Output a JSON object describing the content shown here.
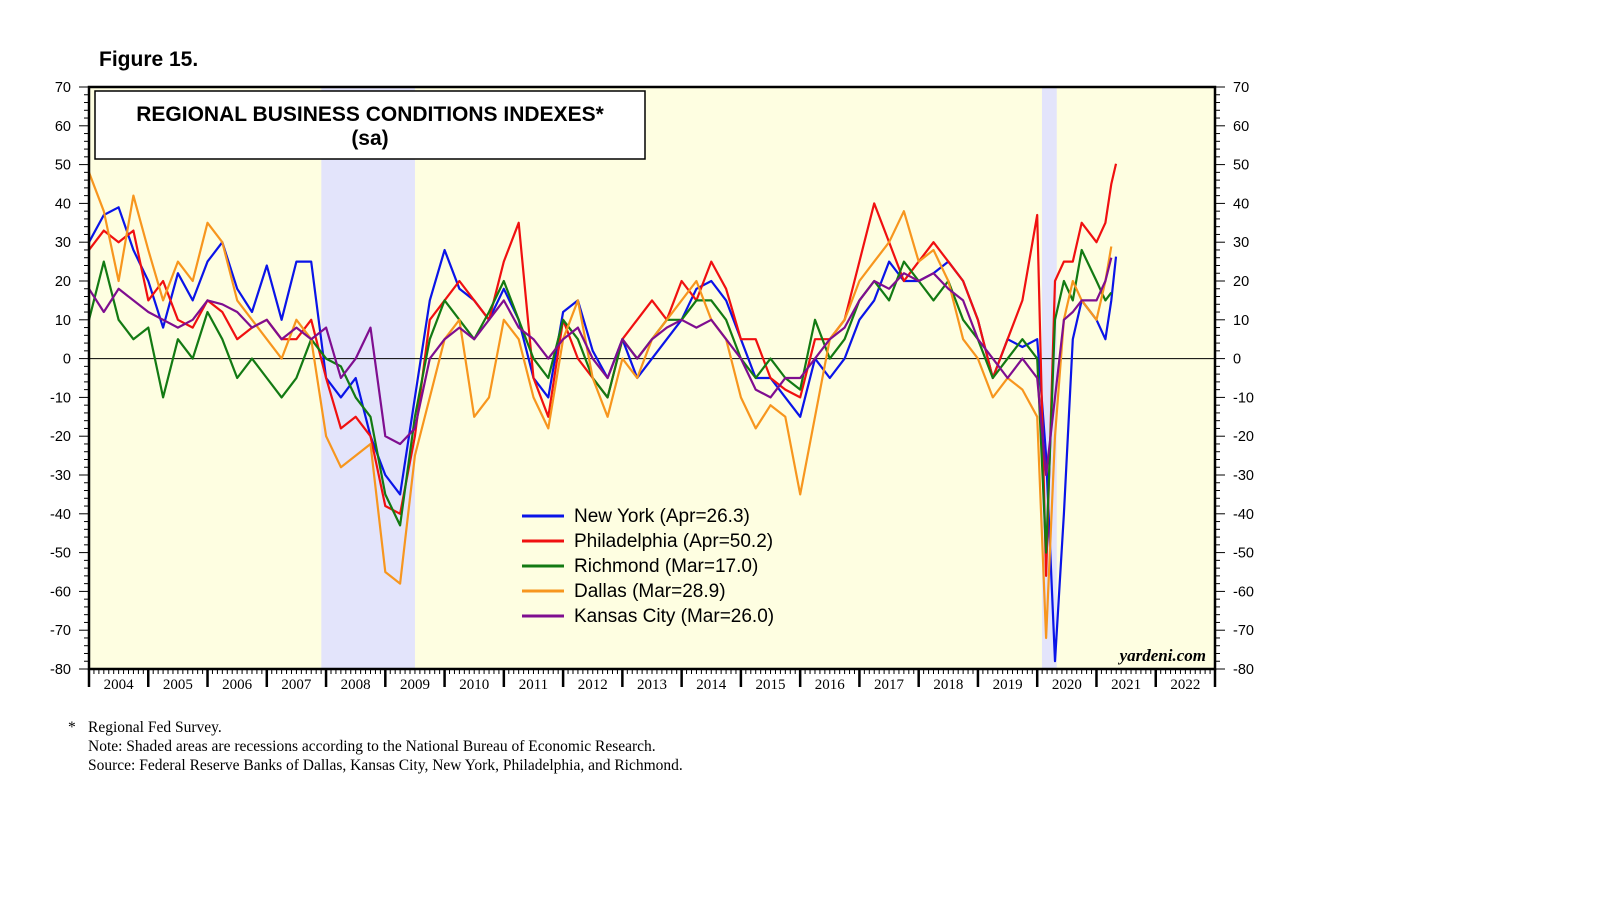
{
  "figure_label": "Figure 15.",
  "footnotes": {
    "marker": "*",
    "lines": [
      "Regional Fed Survey.",
      "Note: Shaded areas are recessions according to the National Bureau of Economic Research.",
      "Source: Federal Reserve Banks of Dallas, Kansas City, New York, Philadelphia, and Richmond."
    ]
  },
  "chart_data": {
    "type": "line",
    "title": "REGIONAL BUSINESS CONDITIONS INDEXES*",
    "subtitle": "(sa)",
    "watermark": "yardeni.com",
    "xlabel": "",
    "ylabel": "",
    "ylim": [
      -80,
      70
    ],
    "xlim": [
      2004,
      2023
    ],
    "y_ticks": [
      70,
      60,
      50,
      40,
      30,
      20,
      10,
      0,
      -10,
      -20,
      -30,
      -40,
      -50,
      -60,
      -70,
      -80
    ],
    "x_tick_labels": [
      "2004",
      "2005",
      "2006",
      "2007",
      "2008",
      "2009",
      "2010",
      "2011",
      "2012",
      "2013",
      "2014",
      "2015",
      "2016",
      "2017",
      "2018",
      "2019",
      "2020",
      "2021",
      "2022"
    ],
    "recessions": [
      [
        2007.92,
        2009.5
      ],
      [
        2020.08,
        2020.33
      ]
    ],
    "colors": {
      "background": "#fefee1",
      "recession": "#e3e4fb",
      "frame": "#000000"
    },
    "legend_position": "center-bottom",
    "series": [
      {
        "name": "New York (Apr=26.3)",
        "color": "#0a14e8",
        "x": [
          2004.0,
          2004.25,
          2004.5,
          2004.75,
          2005.0,
          2005.25,
          2005.5,
          2005.75,
          2006.0,
          2006.25,
          2006.5,
          2006.75,
          2007.0,
          2007.25,
          2007.5,
          2007.75,
          2008.0,
          2008.25,
          2008.5,
          2008.75,
          2009.0,
          2009.25,
          2009.5,
          2009.75,
          2010.0,
          2010.25,
          2010.5,
          2010.75,
          2011.0,
          2011.25,
          2011.5,
          2011.75,
          2012.0,
          2012.25,
          2012.5,
          2012.75,
          2013.0,
          2013.25,
          2013.5,
          2013.75,
          2014.0,
          2014.25,
          2014.5,
          2014.75,
          2015.0,
          2015.25,
          2015.5,
          2015.75,
          2016.0,
          2016.25,
          2016.5,
          2016.75,
          2017.0,
          2017.25,
          2017.5,
          2017.75,
          2018.0,
          2018.25,
          2018.5,
          2018.75,
          2019.0,
          2019.25,
          2019.5,
          2019.75,
          2020.0,
          2020.15,
          2020.3,
          2020.45,
          2020.6,
          2020.75,
          2021.0,
          2021.15,
          2021.25,
          2021.33
        ],
        "values": [
          30,
          37,
          39,
          28,
          20,
          8,
          22,
          15,
          25,
          30,
          18,
          12,
          24,
          10,
          25,
          25,
          -5,
          -10,
          -5,
          -20,
          -30,
          -35,
          -10,
          15,
          28,
          18,
          15,
          10,
          18,
          10,
          -5,
          -10,
          12,
          15,
          2,
          -5,
          5,
          -5,
          0,
          5,
          10,
          18,
          20,
          15,
          5,
          -5,
          -5,
          -10,
          -15,
          0,
          -5,
          0,
          10,
          15,
          25,
          20,
          20,
          22,
          25,
          20,
          10,
          -5,
          5,
          3,
          5,
          -25,
          -78,
          -40,
          5,
          15,
          10,
          5,
          15,
          26.3
        ]
      },
      {
        "name": "Philadelphia (Apr=50.2)",
        "color": "#f01010",
        "x": [
          2004.0,
          2004.25,
          2004.5,
          2004.75,
          2005.0,
          2005.25,
          2005.5,
          2005.75,
          2006.0,
          2006.25,
          2006.5,
          2006.75,
          2007.0,
          2007.25,
          2007.5,
          2007.75,
          2008.0,
          2008.25,
          2008.5,
          2008.75,
          2009.0,
          2009.25,
          2009.5,
          2009.75,
          2010.0,
          2010.25,
          2010.5,
          2010.75,
          2011.0,
          2011.25,
          2011.5,
          2011.75,
          2012.0,
          2012.25,
          2012.5,
          2012.75,
          2013.0,
          2013.25,
          2013.5,
          2013.75,
          2014.0,
          2014.25,
          2014.5,
          2014.75,
          2015.0,
          2015.25,
          2015.5,
          2015.75,
          2016.0,
          2016.25,
          2016.5,
          2016.75,
          2017.0,
          2017.25,
          2017.5,
          2017.75,
          2018.0,
          2018.25,
          2018.5,
          2018.75,
          2019.0,
          2019.25,
          2019.5,
          2019.75,
          2020.0,
          2020.15,
          2020.3,
          2020.45,
          2020.6,
          2020.75,
          2021.0,
          2021.15,
          2021.25,
          2021.33
        ],
        "values": [
          28,
          33,
          30,
          33,
          15,
          20,
          10,
          8,
          15,
          12,
          5,
          8,
          10,
          5,
          5,
          10,
          -5,
          -18,
          -15,
          -20,
          -38,
          -40,
          -20,
          10,
          15,
          20,
          15,
          10,
          25,
          35,
          -5,
          -15,
          10,
          0,
          -5,
          -10,
          5,
          10,
          15,
          10,
          20,
          15,
          25,
          18,
          5,
          5,
          -5,
          -8,
          -10,
          5,
          5,
          10,
          25,
          40,
          30,
          20,
          25,
          30,
          25,
          20,
          10,
          -5,
          5,
          15,
          37,
          -56,
          20,
          25,
          25,
          35,
          30,
          35,
          45,
          50.2
        ]
      },
      {
        "name": "Richmond (Mar=17.0)",
        "color": "#137a13",
        "x": [
          2004.0,
          2004.25,
          2004.5,
          2004.75,
          2005.0,
          2005.25,
          2005.5,
          2005.75,
          2006.0,
          2006.25,
          2006.5,
          2006.75,
          2007.0,
          2007.25,
          2007.5,
          2007.75,
          2008.0,
          2008.25,
          2008.5,
          2008.75,
          2009.0,
          2009.25,
          2009.5,
          2009.75,
          2010.0,
          2010.25,
          2010.5,
          2010.75,
          2011.0,
          2011.25,
          2011.5,
          2011.75,
          2012.0,
          2012.25,
          2012.5,
          2012.75,
          2013.0,
          2013.25,
          2013.5,
          2013.75,
          2014.0,
          2014.25,
          2014.5,
          2014.75,
          2015.0,
          2015.25,
          2015.5,
          2015.75,
          2016.0,
          2016.25,
          2016.5,
          2016.75,
          2017.0,
          2017.25,
          2017.5,
          2017.75,
          2018.0,
          2018.25,
          2018.5,
          2018.75,
          2019.0,
          2019.25,
          2019.5,
          2019.75,
          2020.0,
          2020.15,
          2020.3,
          2020.45,
          2020.6,
          2020.75,
          2021.0,
          2021.15,
          2021.25
        ],
        "values": [
          10,
          25,
          10,
          5,
          8,
          -10,
          5,
          0,
          12,
          5,
          -5,
          0,
          -5,
          -10,
          -5,
          5,
          0,
          -2,
          -10,
          -15,
          -35,
          -43,
          -15,
          5,
          15,
          10,
          5,
          12,
          20,
          10,
          0,
          -5,
          10,
          5,
          -5,
          -10,
          5,
          0,
          5,
          10,
          10,
          15,
          15,
          10,
          0,
          -5,
          0,
          -5,
          -8,
          10,
          0,
          5,
          15,
          20,
          15,
          25,
          20,
          15,
          20,
          10,
          5,
          -5,
          0,
          5,
          0,
          -50,
          10,
          20,
          15,
          28,
          20,
          15,
          17.0
        ]
      },
      {
        "name": "Dallas (Mar=28.9)",
        "color": "#f7961e",
        "x": [
          2004.0,
          2004.25,
          2004.5,
          2004.75,
          2005.0,
          2005.25,
          2005.5,
          2005.75,
          2006.0,
          2006.25,
          2006.5,
          2006.75,
          2007.0,
          2007.25,
          2007.5,
          2007.75,
          2008.0,
          2008.25,
          2008.5,
          2008.75,
          2009.0,
          2009.25,
          2009.5,
          2009.75,
          2010.0,
          2010.25,
          2010.5,
          2010.75,
          2011.0,
          2011.25,
          2011.5,
          2011.75,
          2012.0,
          2012.25,
          2012.5,
          2012.75,
          2013.0,
          2013.25,
          2013.5,
          2013.75,
          2014.0,
          2014.25,
          2014.5,
          2014.75,
          2015.0,
          2015.25,
          2015.5,
          2015.75,
          2016.0,
          2016.25,
          2016.5,
          2016.75,
          2017.0,
          2017.25,
          2017.5,
          2017.75,
          2018.0,
          2018.25,
          2018.5,
          2018.75,
          2019.0,
          2019.25,
          2019.5,
          2019.75,
          2020.0,
          2020.15,
          2020.3,
          2020.45,
          2020.6,
          2020.75,
          2021.0,
          2021.15,
          2021.25
        ],
        "values": [
          48,
          38,
          20,
          42,
          28,
          15,
          25,
          20,
          35,
          30,
          15,
          10,
          5,
          0,
          10,
          5,
          -20,
          -28,
          -25,
          -22,
          -55,
          -58,
          -25,
          -10,
          5,
          10,
          -15,
          -10,
          10,
          5,
          -10,
          -18,
          5,
          15,
          -5,
          -15,
          0,
          -5,
          5,
          10,
          15,
          20,
          10,
          5,
          -10,
          -18,
          -12,
          -15,
          -35,
          -15,
          5,
          10,
          20,
          25,
          30,
          38,
          25,
          28,
          20,
          5,
          0,
          -10,
          -5,
          -8,
          -15,
          -72,
          -20,
          10,
          20,
          15,
          10,
          20,
          28.9
        ]
      },
      {
        "name": "Kansas City (Mar=26.0)",
        "color": "#7f0e90",
        "x": [
          2004.0,
          2004.25,
          2004.5,
          2004.75,
          2005.0,
          2005.25,
          2005.5,
          2005.75,
          2006.0,
          2006.25,
          2006.5,
          2006.75,
          2007.0,
          2007.25,
          2007.5,
          2007.75,
          2008.0,
          2008.25,
          2008.5,
          2008.75,
          2009.0,
          2009.25,
          2009.5,
          2009.75,
          2010.0,
          2010.25,
          2010.5,
          2010.75,
          2011.0,
          2011.25,
          2011.5,
          2011.75,
          2012.0,
          2012.25,
          2012.5,
          2012.75,
          2013.0,
          2013.25,
          2013.5,
          2013.75,
          2014.0,
          2014.25,
          2014.5,
          2014.75,
          2015.0,
          2015.25,
          2015.5,
          2015.75,
          2016.0,
          2016.25,
          2016.5,
          2016.75,
          2017.0,
          2017.25,
          2017.5,
          2017.75,
          2018.0,
          2018.25,
          2018.5,
          2018.75,
          2019.0,
          2019.25,
          2019.5,
          2019.75,
          2020.0,
          2020.15,
          2020.3,
          2020.45,
          2020.6,
          2020.75,
          2021.0,
          2021.15,
          2021.25
        ],
        "values": [
          18,
          12,
          18,
          15,
          12,
          10,
          8,
          10,
          15,
          14,
          12,
          8,
          10,
          5,
          8,
          5,
          8,
          -5,
          0,
          8,
          -20,
          -22,
          -18,
          0,
          5,
          8,
          5,
          10,
          15,
          8,
          5,
          0,
          5,
          8,
          0,
          -5,
          5,
          0,
          5,
          8,
          10,
          8,
          10,
          5,
          0,
          -8,
          -10,
          -5,
          -5,
          0,
          5,
          8,
          15,
          20,
          18,
          22,
          20,
          22,
          18,
          15,
          5,
          0,
          -5,
          0,
          -5,
          -30,
          -10,
          10,
          12,
          15,
          15,
          20,
          26.0
        ]
      }
    ]
  }
}
